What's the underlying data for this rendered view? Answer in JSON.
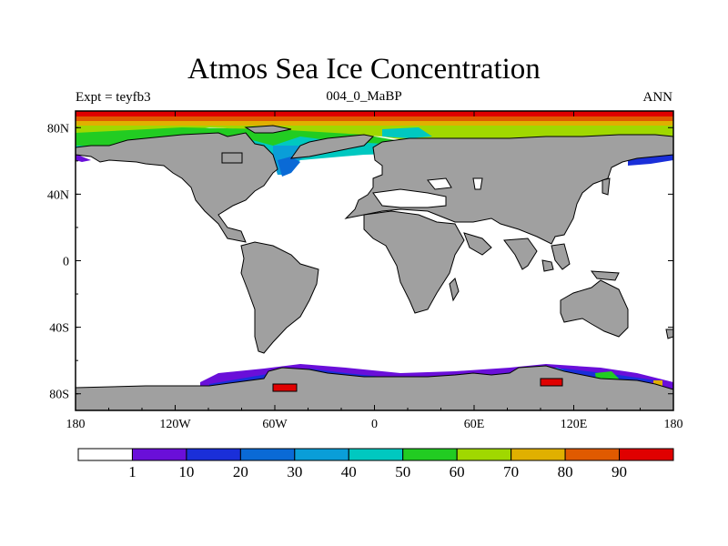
{
  "title": "Atmos Sea Ice Concentration",
  "left_string": "Expt = teyfb3",
  "center_string": "004_0_MaBP",
  "right_string": "ANN",
  "chart_data": {
    "type": "map",
    "variable": "Sea Ice Concentration",
    "lon_range": [
      -180,
      180
    ],
    "lat_range": [
      -90,
      90
    ],
    "x_ticks": [
      "180",
      "120W",
      "60W",
      "0",
      "60E",
      "120E",
      "180"
    ],
    "y_ticks": [
      "80N",
      "40N",
      "0",
      "40S",
      "80S"
    ],
    "land_color": "#a0a0a0",
    "colorbar": {
      "levels": [
        "1",
        "10",
        "20",
        "30",
        "40",
        "50",
        "60",
        "70",
        "80",
        "90"
      ],
      "colors": [
        "#ffffff",
        "#6a0fd9",
        "#1a2fd9",
        "#0a6ad6",
        "#0a9ed8",
        "#00c8c0",
        "#22cc22",
        "#a0d800",
        "#e0b000",
        "#e05a00",
        "#e00000"
      ]
    }
  }
}
